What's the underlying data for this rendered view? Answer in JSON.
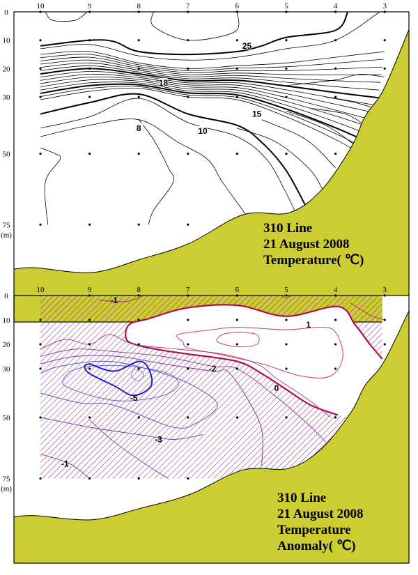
{
  "chart_data": [
    {
      "type": "contour",
      "title_lines": [
        "310 Line",
        "21 August 2008",
        "Temperature( ℃)"
      ],
      "x_ticks": [
        "10",
        "9",
        "8",
        "7",
        "6",
        "5",
        "4",
        "3"
      ],
      "y_ticks": [
        "0",
        "10",
        "20",
        "30",
        "50",
        "75"
      ],
      "y_unit": "(m)",
      "ylim": [
        0,
        90
      ],
      "contour_labels": [
        {
          "text": "25",
          "station": 5.8,
          "depth": 12
        },
        {
          "text": "18",
          "station": 7.5,
          "depth": 25
        },
        {
          "text": "15",
          "station": 5.6,
          "depth": 36
        },
        {
          "text": "10",
          "station": 6.7,
          "depth": 42
        },
        {
          "text": "8",
          "station": 8.0,
          "depth": 41
        }
      ],
      "sample_depths_by_station": {
        "10": [
          0,
          10,
          20,
          30,
          50,
          75
        ],
        "9": [
          0,
          10,
          20,
          30,
          50,
          75
        ],
        "8": [
          0,
          10,
          20,
          30,
          50,
          75
        ],
        "7": [
          0,
          10,
          20,
          30,
          50,
          75
        ],
        "6": [
          0,
          10,
          20,
          30,
          50
        ],
        "5": [
          0,
          10,
          20,
          30,
          50
        ],
        "4": [
          0,
          10,
          20,
          30,
          50
        ],
        "3": [
          0,
          10,
          20
        ]
      },
      "colors": {
        "land": "#cccc33",
        "line": "#000000"
      }
    },
    {
      "type": "contour",
      "title_lines": [
        "310 Line",
        "21 August 2008",
        "Temperature",
        "Anomaly( ℃)"
      ],
      "x_ticks": [
        "10",
        "9",
        "8",
        "7",
        "6",
        "5",
        "4",
        "3"
      ],
      "y_ticks": [
        "0",
        "10",
        "20",
        "30",
        "50",
        "75"
      ],
      "y_unit": "(m)",
      "ylim": [
        0,
        90
      ],
      "contour_labels": [
        {
          "text": "-1",
          "station": 8.5,
          "depth": 2
        },
        {
          "text": "1",
          "station": 4.55,
          "depth": 12
        },
        {
          "text": "-2",
          "station": 6.5,
          "depth": 30
        },
        {
          "text": "0",
          "station": 5.2,
          "depth": 38
        },
        {
          "text": "-5",
          "station": 8.1,
          "depth": 42
        },
        {
          "text": "-3",
          "station": 7.6,
          "depth": 59
        },
        {
          "text": "-1",
          "station": 9.5,
          "depth": 69
        }
      ],
      "sample_depths_by_station": {
        "10": [
          10,
          20,
          30,
          50,
          75
        ],
        "9": [
          0,
          10,
          20,
          30,
          50,
          75
        ],
        "8": [
          0,
          10,
          20,
          30,
          50,
          75
        ],
        "7": [
          0,
          10,
          20,
          30,
          50,
          75
        ],
        "6": [
          0,
          10,
          20,
          30,
          50
        ],
        "5": [
          0,
          10,
          20,
          30,
          50
        ],
        "4": [
          0,
          10,
          20,
          30,
          50
        ],
        "3": [
          0,
          10,
          20
        ]
      },
      "colors": {
        "land": "#cccc33",
        "negative_hatch": "#8a2f7a",
        "zero": "#b0104a",
        "positive": "#d83a60",
        "minus2": "#8040a0",
        "minus3": "#6a50c0",
        "minus5": "#2020c8"
      }
    }
  ]
}
